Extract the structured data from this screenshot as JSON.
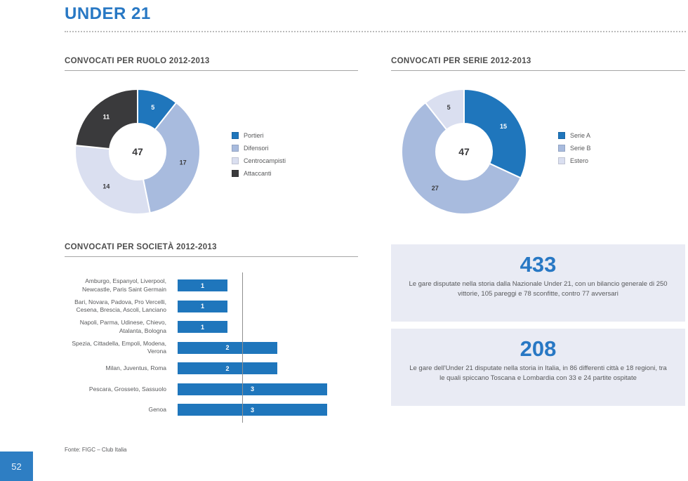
{
  "page": {
    "title": "UNDER 21",
    "source": "Fonte: FIGC – Club Italia",
    "page_number": "52"
  },
  "colors": {
    "accent_blue": "#2878C4",
    "chart_blue": "#1F76BC",
    "chart_periwinkle": "#A8BBDE",
    "chart_lavender": "#DADFF0",
    "chart_dark": "#3A3A3C",
    "stat_box_background": "#E9EBF4",
    "heading_gray": "#4D4D4D",
    "body_gray": "#58595B",
    "page_box_blue": "#2E7EC3"
  },
  "chart_data": [
    {
      "id": "ruolo",
      "type": "pie",
      "subtype": "donut",
      "title": "CONVOCATI PER RUOLO 2012-2013",
      "center_total": 47,
      "legend_position": "right",
      "segments": [
        {
          "label": "Portieri",
          "value": 5,
          "color": "#1F76BC",
          "label_color": "#FFFFFF"
        },
        {
          "label": "Difensori",
          "value": 17,
          "color": "#A8BBDE",
          "label_color": "#3A3A3C"
        },
        {
          "label": "Centrocampisti",
          "value": 14,
          "color": "#DADFF0",
          "label_color": "#3A3A3C"
        },
        {
          "label": "Attaccanti",
          "value": 11,
          "color": "#3A3A3C",
          "label_color": "#FFFFFF"
        }
      ]
    },
    {
      "id": "serie",
      "type": "pie",
      "subtype": "donut",
      "title": "CONVOCATI PER SERIE 2012-2013",
      "center_total": 47,
      "legend_position": "right",
      "segments": [
        {
          "label": "Serie A",
          "value": 15,
          "color": "#1F76BC",
          "label_color": "#FFFFFF"
        },
        {
          "label": "Serie B",
          "value": 27,
          "color": "#A8BBDE",
          "label_color": "#3A3A3C"
        },
        {
          "label": "Estero",
          "value": 5,
          "color": "#DADFF0",
          "label_color": "#3A3A3C"
        }
      ]
    },
    {
      "id": "societa",
      "type": "bar",
      "orientation": "horizontal",
      "title": "CONVOCATI PER SOCIETÀ 2012-2013",
      "bar_color": "#1F76BC",
      "xlim": [
        0,
        3.9
      ],
      "grid": false,
      "categories": [
        "Amburgo, Espanyol, Liverpool, Newcastle, Paris Saint Germain",
        "Bari, Novara, Padova, Pro Vercelli, Cesena, Brescia, Ascoli, Lanciano",
        "Napoli, Parma, Udinese, Chievo, Atalanta, Bologna",
        "Spezia, Cittadella, Empoli, Modena, Verona",
        "Milan, Juventus, Roma",
        "Pescara, Grosseto, Sassuolo",
        "Genoa"
      ],
      "values": [
        1,
        1,
        1,
        2,
        2,
        3,
        3
      ]
    }
  ],
  "stats": [
    {
      "value": "433",
      "text": "Le gare disputate nella storia dalla Nazionale Under 21, con un bilancio generale di 250 vittorie, 105 pareggi e 78 sconfitte, contro 77 avversari"
    },
    {
      "value": "208",
      "text": "Le gare dell'Under 21 disputate nella storia in Italia, in 86 differenti città e 18 regioni, tra le quali spiccano Toscana e Lombardia con 33 e 24 partite ospitate"
    }
  ]
}
